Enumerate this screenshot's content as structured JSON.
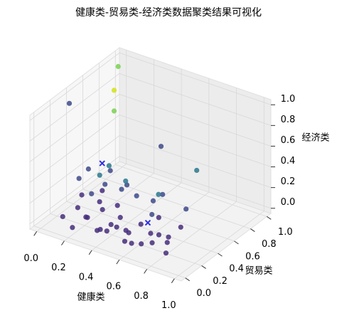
{
  "chart_data": {
    "type": "scatter3d",
    "title": "健康类-贸易类-经济类数据聚类结果可视化",
    "xlabel": "健康类",
    "ylabel": "贸易类",
    "zlabel": "经济类",
    "xlim": [
      -0.05,
      1.05
    ],
    "ylim": [
      -0.05,
      1.05
    ],
    "zlim": [
      -0.05,
      1.05
    ],
    "xticks": [
      {
        "value": 0,
        "label": "0.0"
      },
      {
        "value": 0.2,
        "label": "0.2"
      },
      {
        "value": 0.4,
        "label": "0.4"
      },
      {
        "value": 0.6,
        "label": "0.6"
      },
      {
        "value": 0.8,
        "label": "0.8"
      },
      {
        "value": 1,
        "label": "1.0"
      }
    ],
    "yticks": [
      {
        "value": 0,
        "label": "0.0"
      },
      {
        "value": 0.2,
        "label": "0.2"
      },
      {
        "value": 0.4,
        "label": "0.4"
      },
      {
        "value": 0.6,
        "label": "0.6"
      },
      {
        "value": 0.8,
        "label": "0.8"
      },
      {
        "value": 1,
        "label": "1.0"
      }
    ],
    "zticks": [
      {
        "value": 0,
        "label": "0.0"
      },
      {
        "value": 0.2,
        "label": "0.2"
      },
      {
        "value": 0.4,
        "label": "0.4"
      },
      {
        "value": 0.6,
        "label": "0.6"
      },
      {
        "value": 0.8,
        "label": "0.8"
      },
      {
        "value": 1,
        "label": "1.0"
      }
    ],
    "grid": true,
    "series": [
      {
        "color": "#472d7b",
        "marker": "o",
        "x": [
          0.1,
          0.15,
          0.2,
          0.25,
          0.3,
          0.35,
          0.4,
          0.45,
          0.5,
          0.55,
          0.6,
          0.65,
          0.7,
          0.75,
          0.8,
          0.85,
          0.12,
          0.22,
          0.32,
          0.42,
          0.52,
          0.62,
          0.72,
          0.18,
          0.28,
          0.38,
          0.48,
          0.58,
          0.68,
          0.78
        ],
        "y": [
          0.1,
          0.2,
          0.05,
          0.15,
          0.25,
          0.1,
          0.3,
          0.05,
          0.2,
          0.15,
          0.1,
          0.25,
          0.05,
          0.3,
          0.2,
          0.1,
          0.3,
          0.35,
          0.4,
          0.02,
          0.35,
          0.4,
          0.15,
          0.45,
          0.08,
          0.22,
          0.12,
          0.05,
          0.3,
          0.4
        ],
        "z": [
          0.05,
          0.1,
          0.02,
          0.08,
          0.12,
          0.03,
          0.06,
          0.1,
          0.04,
          0.07,
          0.02,
          0.05,
          0.09,
          0.03,
          0.06,
          0.04,
          0.15,
          0.1,
          0.08,
          0.12,
          0.02,
          0.1,
          0.05,
          0.13,
          0.14,
          0.03,
          0.11,
          0.06,
          0.02,
          0.08
        ]
      },
      {
        "color": "#3e4a89",
        "marker": "o",
        "x": [
          0.05,
          0.1,
          0.2,
          0.3,
          0.15,
          0.25,
          0.4,
          0.55,
          0.7,
          0.35,
          0.6,
          0.5,
          0,
          0.4
        ],
        "y": [
          0.5,
          0.3,
          0.45,
          0.55,
          0.6,
          0.2,
          0.5,
          0.45,
          0.6,
          0.4,
          0.35,
          0.65,
          0.35,
          0.8
        ],
        "z": [
          0.25,
          0.3,
          0.2,
          0.18,
          0.22,
          0.28,
          0.15,
          0.2,
          0.1,
          0.25,
          0.15,
          0.12,
          0.95,
          0.45
        ]
      },
      {
        "color": "#2a788e",
        "marker": "o",
        "x": [
          0.2,
          0.35,
          0.6,
          0.5,
          0.25
        ],
        "y": [
          0.5,
          0.45,
          0.9,
          0.6,
          0.3
        ],
        "z": [
          0.35,
          0.3,
          0.25,
          0.15,
          0.4
        ]
      },
      {
        "color": "#7ad151",
        "marker": "o",
        "x": [
          0,
          0
        ],
        "y": [
          0.9,
          0.95
        ],
        "z": [
          0.55,
          0.95
        ]
      },
      {
        "color": "#d2e21b",
        "marker": "o",
        "x": [
          0
        ],
        "y": [
          0.9
        ],
        "z": [
          0.75
        ]
      },
      {
        "color": "#2f2fe0",
        "marker": "x",
        "x": [
          0.15,
          0.6
        ],
        "y": [
          0.5,
          0.3
        ],
        "z": [
          0.35,
          0.1
        ]
      }
    ]
  }
}
